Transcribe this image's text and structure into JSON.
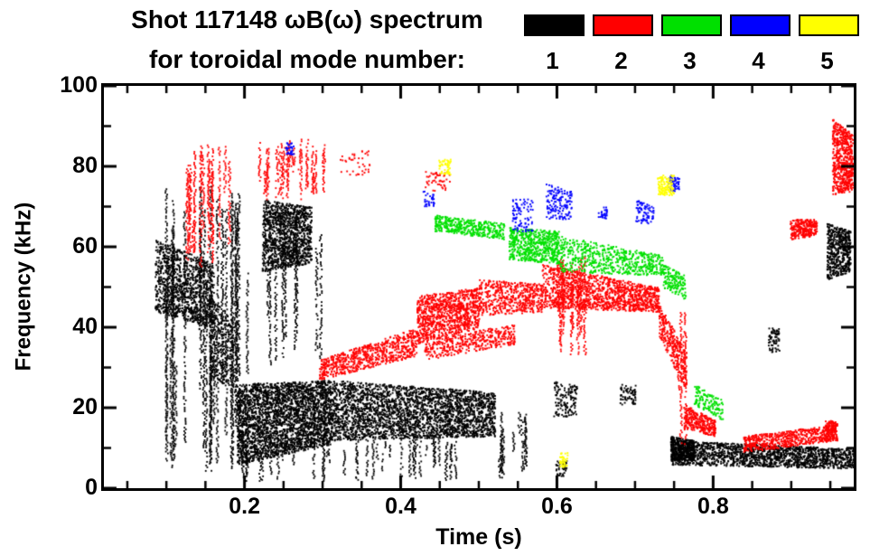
{
  "header": {
    "title_line1": "Shot 117148 ωB(ω) spectrum",
    "title_line2": "for toroidal mode number:",
    "legend": [
      {
        "label": "1",
        "color": "#000000"
      },
      {
        "label": "2",
        "color": "#ff0000"
      },
      {
        "label": "3",
        "color": "#00e000"
      },
      {
        "label": "4",
        "color": "#0000ff"
      },
      {
        "label": "5",
        "color": "#ffff00"
      }
    ]
  },
  "chart_data": {
    "type": "scatter",
    "title": "Shot 117148 ωB(ω) spectrum for toroidal mode number",
    "xlabel": "Time (s)",
    "ylabel": "Frequency (kHz)",
    "xlim": [
      0.02,
      0.98
    ],
    "ylim": [
      0,
      100
    ],
    "x_major_ticks": [
      0.2,
      0.4,
      0.6,
      0.8
    ],
    "x_tick_labels": [
      "0.2",
      "0.4",
      "0.6",
      "0.8"
    ],
    "x_minor_step": 0.05,
    "y_major_ticks": [
      0,
      20,
      40,
      60,
      80,
      100
    ],
    "y_tick_labels": [
      "0",
      "20",
      "40",
      "60",
      "80",
      "100"
    ],
    "y_minor_step": 10,
    "grid": false,
    "legend_position": "top-right",
    "series": [
      {
        "name": "mode 1",
        "color": "#000000",
        "clusters": [
          {
            "mode": "blob",
            "t": [
              0.085,
              0.16
            ],
            "fs": [
              44,
              62
            ],
            "fe": [
              40,
              56
            ],
            "n": 1100
          },
          {
            "mode": "blob",
            "t": [
              0.155,
              0.185
            ],
            "fs": [
              28,
              48
            ],
            "fe": [
              25,
              42
            ],
            "n": 320
          },
          {
            "mode": "streaks",
            "t": [
              0.09,
              0.215
            ],
            "f": [
              4,
              76
            ],
            "n": 26
          },
          {
            "mode": "blob",
            "t": [
              0.222,
              0.285
            ],
            "fs": [
              54,
              72
            ],
            "fe": [
              56,
              70
            ],
            "n": 1200
          },
          {
            "mode": "streaks",
            "t": [
              0.225,
              0.3
            ],
            "f": [
              30,
              70
            ],
            "n": 9
          },
          {
            "mode": "blob",
            "t": [
              0.19,
              0.31
            ],
            "fs": [
              6,
              26
            ],
            "fe": [
              11,
              27
            ],
            "n": 2800
          },
          {
            "mode": "blob",
            "t": [
              0.31,
              0.52
            ],
            "fs": [
              12,
              27
            ],
            "fe": [
              13,
              24
            ],
            "n": 2800
          },
          {
            "mode": "streaks",
            "t": [
              0.195,
              0.545
            ],
            "f": [
              2,
              15
            ],
            "n": 45
          },
          {
            "mode": "streaks",
            "t": [
              0.52,
              0.565
            ],
            "f": [
              4,
              20
            ],
            "n": 8
          },
          {
            "mode": "blob",
            "t": [
              0.595,
              0.625
            ],
            "fs": [
              18,
              27
            ],
            "fe": [
              18,
              26
            ],
            "n": 140
          },
          {
            "mode": "blob",
            "t": [
              0.598,
              0.612
            ],
            "fs": [
              3,
              7
            ],
            "fe": [
              3,
              7
            ],
            "n": 40
          },
          {
            "mode": "blob",
            "t": [
              0.68,
              0.7
            ],
            "fs": [
              21,
              26
            ],
            "fe": [
              21,
              26
            ],
            "n": 70
          },
          {
            "mode": "blob",
            "t": [
              0.745,
              0.775
            ],
            "fs": [
              7,
              13
            ],
            "fe": [
              7,
              12
            ],
            "n": 420
          },
          {
            "mode": "blob",
            "t": [
              0.745,
              0.98
            ],
            "fs": [
              6,
              12
            ],
            "fe": [
              5,
              10
            ],
            "n": 1700
          },
          {
            "mode": "blob",
            "t": [
              0.87,
              0.884
            ],
            "fs": [
              34,
              40
            ],
            "fe": [
              34,
              40
            ],
            "n": 70
          },
          {
            "mode": "blob",
            "t": [
              0.945,
              0.975
            ],
            "fs": [
              52,
              66
            ],
            "fe": [
              54,
              64
            ],
            "n": 520
          }
        ]
      },
      {
        "name": "mode 2",
        "color": "#ff0000",
        "clusters": [
          {
            "mode": "streaks",
            "t": [
              0.125,
              0.18
            ],
            "f": [
              55,
              86
            ],
            "n": 16
          },
          {
            "mode": "streaks",
            "t": [
              0.218,
              0.305
            ],
            "f": [
              72,
              87
            ],
            "n": 24
          },
          {
            "mode": "blob",
            "t": [
              0.32,
              0.36
            ],
            "fs": [
              78,
              84
            ],
            "fe": [
              78,
              84
            ],
            "n": 40
          },
          {
            "mode": "blob",
            "t": [
              0.295,
              0.42
            ],
            "fs": [
              27,
              32
            ],
            "fe": [
              33,
              40
            ],
            "n": 700
          },
          {
            "mode": "blob",
            "t": [
              0.42,
              0.5
            ],
            "fs": [
              36,
              48
            ],
            "fe": [
              40,
              50
            ],
            "n": 1000
          },
          {
            "mode": "blob",
            "t": [
              0.43,
              0.545
            ],
            "fs": [
              32,
              37
            ],
            "fe": [
              36,
              41
            ],
            "n": 420
          },
          {
            "mode": "blob",
            "t": [
              0.5,
              0.58
            ],
            "fs": [
              43,
              52
            ],
            "fe": [
              44,
              51
            ],
            "n": 520
          },
          {
            "mode": "blob",
            "t": [
              0.43,
              0.462
            ],
            "fs": [
              74,
              79
            ],
            "fe": [
              74,
              79
            ],
            "n": 50
          },
          {
            "mode": "blob",
            "t": [
              0.58,
              0.73
            ],
            "fs": [
              45,
              56
            ],
            "fe": [
              44,
              50
            ],
            "n": 1300
          },
          {
            "mode": "streaks",
            "t": [
              0.595,
              0.635
            ],
            "f": [
              33,
              58
            ],
            "n": 14
          },
          {
            "mode": "blob",
            "t": [
              0.73,
              0.765
            ],
            "fs": [
              38,
              46
            ],
            "fe": [
              24,
              34
            ],
            "n": 300
          },
          {
            "mode": "streaks",
            "t": [
              0.75,
              0.764
            ],
            "f": [
              10,
              45
            ],
            "n": 4
          },
          {
            "mode": "blob",
            "t": [
              0.762,
              0.802
            ],
            "fs": [
              15,
              21
            ],
            "fe": [
              13,
              17
            ],
            "n": 300
          },
          {
            "mode": "blob",
            "t": [
              0.838,
              0.955
            ],
            "fs": [
              9,
              13
            ],
            "fe": [
              12,
              16
            ],
            "n": 620
          },
          {
            "mode": "blob",
            "t": [
              0.943,
              0.958
            ],
            "fs": [
              12,
              17
            ],
            "fe": [
              12,
              17
            ],
            "n": 130
          },
          {
            "mode": "blob",
            "t": [
              0.898,
              0.932
            ],
            "fs": [
              62,
              67
            ],
            "fe": [
              63,
              67
            ],
            "n": 280
          },
          {
            "mode": "blob",
            "t": [
              0.952,
              0.978
            ],
            "fs": [
              73,
              92
            ],
            "fe": [
              74,
              88
            ],
            "n": 620
          }
        ]
      },
      {
        "name": "mode 3",
        "color": "#00e000",
        "clusters": [
          {
            "mode": "blob",
            "t": [
              0.443,
              0.532
            ],
            "fs": [
              64,
              68
            ],
            "fe": [
              62,
              66
            ],
            "n": 420
          },
          {
            "mode": "blob",
            "t": [
              0.538,
              0.602
            ],
            "fs": [
              57,
              65
            ],
            "fe": [
              56,
              64
            ],
            "n": 620
          },
          {
            "mode": "blob",
            "t": [
              0.602,
              0.735
            ],
            "fs": [
              54,
              63
            ],
            "fe": [
              53,
              58
            ],
            "n": 620
          },
          {
            "mode": "blob",
            "t": [
              0.735,
              0.764
            ],
            "fs": [
              50,
              56
            ],
            "fe": [
              47,
              53
            ],
            "n": 160
          },
          {
            "mode": "blob",
            "t": [
              0.775,
              0.812
            ],
            "fs": [
              21,
              26
            ],
            "fe": [
              17,
              22
            ],
            "n": 140
          }
        ]
      },
      {
        "name": "mode 4",
        "color": "#0000ff",
        "clusters": [
          {
            "mode": "blob",
            "t": [
              0.252,
              0.263
            ],
            "fs": [
              83,
              86
            ],
            "fe": [
              83,
              86
            ],
            "n": 28
          },
          {
            "mode": "blob",
            "t": [
              0.428,
              0.442
            ],
            "fs": [
              70,
              74
            ],
            "fe": [
              70,
              74
            ],
            "n": 30
          },
          {
            "mode": "blob",
            "t": [
              0.542,
              0.568
            ],
            "fs": [
              64,
              72
            ],
            "fe": [
              64,
              72
            ],
            "n": 90
          },
          {
            "mode": "blob",
            "t": [
              0.585,
              0.618
            ],
            "fs": [
              67,
              76
            ],
            "fe": [
              67,
              74
            ],
            "n": 150
          },
          {
            "mode": "blob",
            "t": [
              0.652,
              0.663
            ],
            "fs": [
              67,
              70
            ],
            "fe": [
              67,
              70
            ],
            "n": 28
          },
          {
            "mode": "blob",
            "t": [
              0.7,
              0.723
            ],
            "fs": [
              66,
              72
            ],
            "fe": [
              66,
              70
            ],
            "n": 80
          },
          {
            "mode": "blob",
            "t": [
              0.742,
              0.756
            ],
            "fs": [
              74,
              78
            ],
            "fe": [
              74,
              78
            ],
            "n": 55
          }
        ]
      },
      {
        "name": "mode 5",
        "color": "#ffff00",
        "clusters": [
          {
            "mode": "blob",
            "t": [
              0.448,
              0.463
            ],
            "fs": [
              78,
              82
            ],
            "fe": [
              78,
              82
            ],
            "n": 50
          },
          {
            "mode": "blob",
            "t": [
              0.728,
              0.749
            ],
            "fs": [
              73,
              78
            ],
            "fe": [
              73,
              78
            ],
            "n": 120
          },
          {
            "mode": "blob",
            "t": [
              0.602,
              0.613
            ],
            "fs": [
              5,
              9
            ],
            "fe": [
              5,
              9
            ],
            "n": 40
          }
        ]
      }
    ]
  }
}
